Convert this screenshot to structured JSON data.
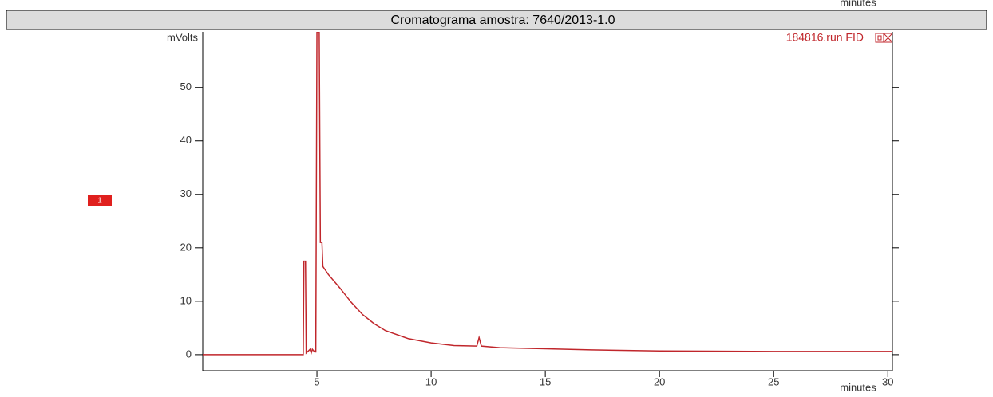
{
  "cropped_axis_label": "minutes",
  "chart_data": {
    "type": "line",
    "title": "Cromatograma amostra: 7640/2013-1.0",
    "ylabel": "mVolts",
    "xlabel": "minutes",
    "annotation": "184816.run FID",
    "peak_marker": "1",
    "xlim": [
      0,
      30.2
    ],
    "ylim": [
      -3,
      60.4
    ],
    "xticks": [
      5,
      10,
      15,
      20,
      25,
      30
    ],
    "yticks": [
      0,
      10,
      20,
      30,
      40,
      50
    ],
    "series": [
      {
        "name": "184816.run FID",
        "color": "#c0262b",
        "x": [
          0,
          4.4,
          4.43,
          4.5,
          4.53,
          4.7,
          4.75,
          4.8,
          4.9,
          4.95,
          5.0,
          5.1,
          5.15,
          5.22,
          5.26,
          5.5,
          6,
          6.5,
          7,
          7.5,
          8,
          9,
          10,
          11,
          12,
          12.1,
          12.2,
          13,
          15,
          17,
          20,
          25,
          30.2
        ],
        "values": [
          0,
          0,
          17.5,
          17.5,
          0.3,
          1,
          0.3,
          1,
          0.5,
          0.5,
          60.4,
          60.4,
          21,
          21,
          16.5,
          15,
          12.5,
          9.8,
          7.5,
          5.8,
          4.5,
          3,
          2.2,
          1.7,
          1.6,
          3.2,
          1.6,
          1.3,
          1.1,
          0.9,
          0.7,
          0.6,
          0.6
        ]
      }
    ]
  }
}
